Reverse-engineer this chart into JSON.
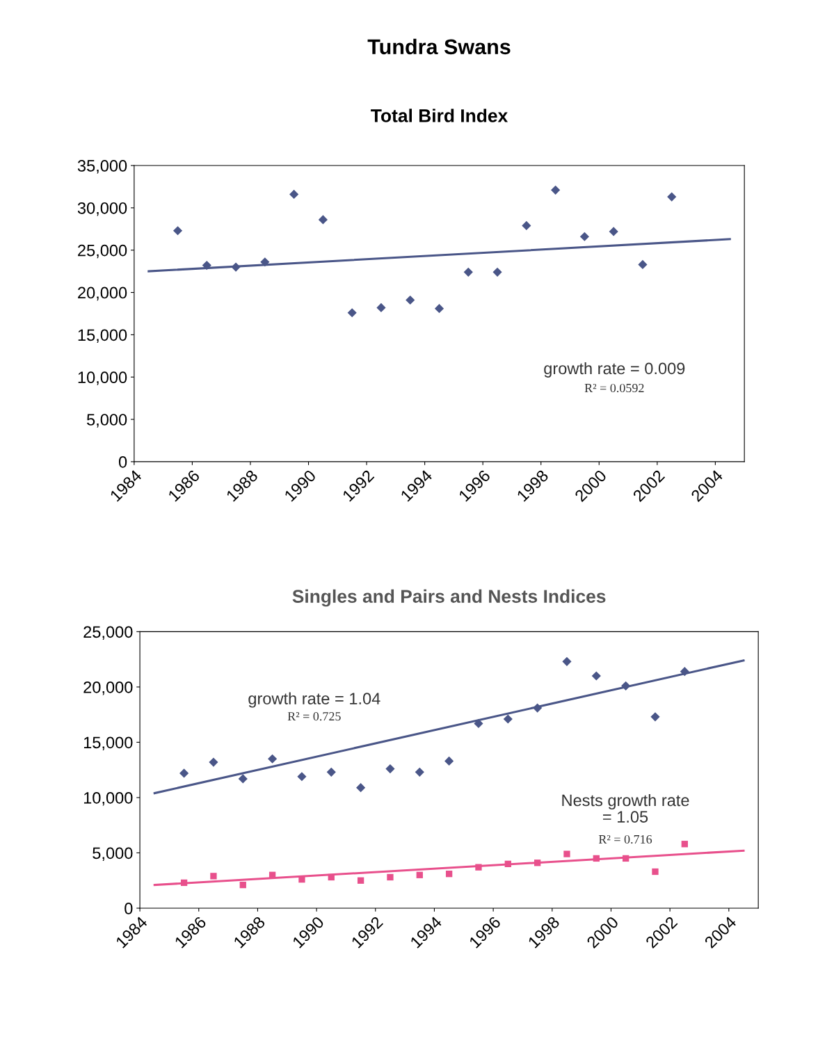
{
  "chart_data": [
    {
      "type": "scatter",
      "title": "Tundra Swans",
      "subtitle": "Total Bird Index",
      "series": [
        {
          "color": "#4a5688",
          "marker": "diamond",
          "x": [
            1985.5,
            1986.5,
            1987.5,
            1988.5,
            1989.5,
            1990.5,
            1991.5,
            1992.5,
            1993.5,
            1994.5,
            1995.5,
            1996.5,
            1997.5,
            1998.5,
            1999.5,
            2000.5,
            2001.5,
            2002.5
          ],
          "values": [
            27300,
            23200,
            23000,
            23600,
            31600,
            28600,
            17600,
            18200,
            19100,
            18100,
            22400,
            22400,
            27900,
            32100,
            26600,
            27200,
            23300,
            31300
          ]
        },
        {
          "type": "line",
          "color": "#4a5688",
          "line_style": "solid",
          "x": [
            1984.5,
            2004.5
          ],
          "values": [
            22500,
            26300
          ]
        }
      ],
      "annotations": [
        "growth rate = 0.009",
        "R² = 0.0592"
      ],
      "xlim": [
        1984,
        2005
      ],
      "xticks": [
        1984,
        1986,
        1988,
        1990,
        1992,
        1994,
        1996,
        1998,
        2000,
        2002,
        2004
      ],
      "ylim": [
        0,
        35000
      ],
      "yticks": [
        0,
        {
          "value": 5000,
          "label": "5,000"
        },
        {
          "value": 10000,
          "label": "10,000"
        },
        {
          "value": 15000,
          "label": "15,000"
        },
        {
          "value": 20000,
          "label": "20,000"
        },
        {
          "value": 25000,
          "label": "25,000"
        },
        {
          "value": 30000,
          "label": "30,000"
        },
        {
          "value": 35000,
          "label": "35,000"
        }
      ],
      "grid": false,
      "legend": false
    },
    {
      "type": "scatter",
      "title": "Singles and Pairs and Nests Indices",
      "series": [
        {
          "color": "#4a5688",
          "marker": "diamond",
          "x": [
            1985.5,
            1986.5,
            1987.5,
            1988.5,
            1989.5,
            1990.5,
            1991.5,
            1992.5,
            1993.5,
            1994.5,
            1995.5,
            1996.5,
            1997.5,
            1998.5,
            1999.5,
            2000.5,
            2001.5,
            2002.5
          ],
          "values": [
            12200,
            13200,
            11700,
            13500,
            11900,
            12300,
            10900,
            12600,
            12300,
            13300,
            16700,
            17100,
            18100,
            22300,
            21000,
            20100,
            17300,
            21400
          ]
        },
        {
          "type": "line",
          "color": "#4a5688",
          "line_style": "solid",
          "x": [
            1984.5,
            2004.5
          ],
          "values": [
            10400,
            22400
          ]
        },
        {
          "color": "#e8508c",
          "marker": "square",
          "x": [
            1985.5,
            1986.5,
            1987.5,
            1988.5,
            1989.5,
            1990.5,
            1991.5,
            1992.5,
            1993.5,
            1994.5,
            1995.5,
            1996.5,
            1997.5,
            1998.5,
            1999.5,
            2000.5,
            2001.5,
            2002.5
          ],
          "values": [
            2300,
            2900,
            2100,
            3000,
            2600,
            2800,
            2500,
            2800,
            3000,
            3100,
            3700,
            4000,
            4100,
            4900,
            4500,
            4500,
            3300,
            5800
          ]
        },
        {
          "type": "line",
          "color": "#e8508c",
          "line_style": "solid",
          "x": [
            1984.5,
            2004.5
          ],
          "values": [
            2100,
            5200
          ]
        }
      ],
      "annotations": [
        "growth rate = 1.04",
        "R² = 0.725",
        "Nests growth rate\n= 1.05",
        "R² = 0.716"
      ],
      "xlim": [
        1984,
        2005
      ],
      "xticks": [
        1984,
        1986,
        1988,
        1990,
        1992,
        1994,
        1996,
        1998,
        2000,
        2002,
        2004
      ],
      "ylim": [
        0,
        25000
      ],
      "yticks": [
        0,
        {
          "value": 5000,
          "label": "5,000"
        },
        {
          "value": 10000,
          "label": "10,000"
        },
        {
          "value": 15000,
          "label": "15,000"
        },
        {
          "value": 20000,
          "label": "20,000"
        },
        {
          "value": 25000,
          "label": "25,000"
        }
      ],
      "grid": false,
      "legend": false
    }
  ]
}
